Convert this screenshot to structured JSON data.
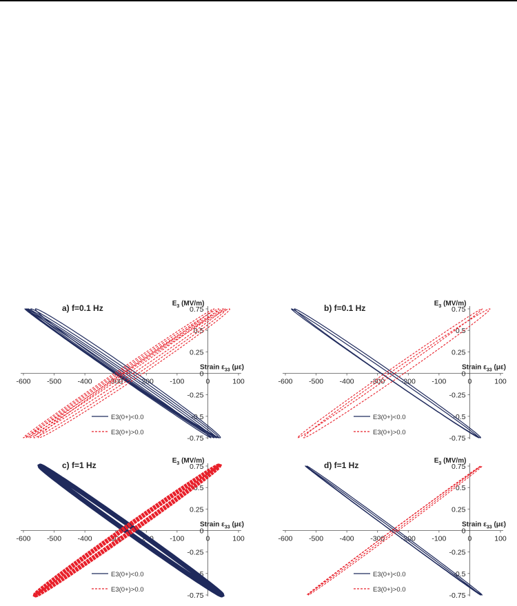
{
  "colors": {
    "negative": "#1f2a5c",
    "positive": "#e8202a",
    "axis": "#555555"
  },
  "chart_data": [
    {
      "type": "line",
      "title": "a) f=0.1 Hz",
      "xlabel": "Strain ε33 (με)",
      "ylabel": "E3 (MV/m)",
      "xlim": [
        -600,
        100
      ],
      "ylim": [
        -0.75,
        0.75
      ],
      "xticks": [
        "-600",
        "-500",
        "-400",
        "-300",
        "-200",
        "-100",
        "0",
        "100"
      ],
      "yticks": [
        "0.75",
        "0.5",
        "0.25",
        "0",
        "-0.25",
        "-0.5",
        "-0.75"
      ],
      "grid": false,
      "legend_position": "bottom-center",
      "series": [
        {
          "name": "E3(0+)<0.0",
          "style": "solid",
          "loops": [
            {
              "x_at_max": -595,
              "x_at_min": 10,
              "half_width": 12
            },
            {
              "x_at_max": -590,
              "x_at_min": 20,
              "half_width": 16
            },
            {
              "x_at_max": -585,
              "x_at_min": 28,
              "half_width": 20
            },
            {
              "x_at_max": -575,
              "x_at_min": 35,
              "half_width": 24
            },
            {
              "x_at_max": -560,
              "x_at_min": 40,
              "half_width": 28
            }
          ]
        },
        {
          "name": "E3(0+)>0.0",
          "style": "dashed",
          "loops": [
            {
              "x_at_max": 20,
              "x_at_min": -600,
              "half_width": 14
            },
            {
              "x_at_max": 35,
              "x_at_min": -590,
              "half_width": 18
            },
            {
              "x_at_max": 50,
              "x_at_min": -580,
              "half_width": 22
            },
            {
              "x_at_max": 60,
              "x_at_min": -565,
              "half_width": 26
            },
            {
              "x_at_max": 70,
              "x_at_min": -550,
              "half_width": 30
            }
          ]
        }
      ]
    },
    {
      "type": "line",
      "title": "b) f=0.1 Hz",
      "xlabel": "Strain ε33 (με)",
      "ylabel": "E3 (MV/m)",
      "xlim": [
        -600,
        100
      ],
      "ylim": [
        -0.75,
        0.75
      ],
      "xticks": [
        "-600",
        "-500",
        "-400",
        "-300",
        "-200",
        "-100",
        "0",
        "100"
      ],
      "yticks": [
        "0.75",
        "0.5",
        "0.25",
        "0",
        "-0.25",
        "-0.5",
        "-0.75"
      ],
      "grid": false,
      "legend_position": "bottom-center",
      "series": [
        {
          "name": "E3(0+)<0.0",
          "style": "solid",
          "loops": [
            {
              "x_at_max": -580,
              "x_at_min": 30,
              "half_width": 14
            },
            {
              "x_at_max": -570,
              "x_at_min": 35,
              "half_width": 20
            }
          ]
        },
        {
          "name": "E3(0+)>0.0",
          "style": "dashed",
          "loops": [
            {
              "x_at_max": 40,
              "x_at_min": -560,
              "half_width": 16
            },
            {
              "x_at_max": 65,
              "x_at_min": -540,
              "half_width": 24
            }
          ]
        }
      ]
    },
    {
      "type": "line",
      "title": "c) f=1 Hz",
      "xlabel": "Strain ε33 (με)",
      "ylabel": "E3 (MV/m)",
      "xlim": [
        -600,
        100
      ],
      "ylim": [
        -0.75,
        0.75
      ],
      "xticks": [
        "-600",
        "-500",
        "-400",
        "-300",
        "-200",
        "-100",
        "0",
        "100"
      ],
      "yticks": [
        "0.75",
        "0.5",
        "0.25",
        "0",
        "-0.25",
        "-0.5",
        "-0.75"
      ],
      "grid": false,
      "legend_position": "bottom-center",
      "series": [
        {
          "name": "E3(0+)<0.0",
          "style": "solid",
          "loops": [
            {
              "x_at_max": -545,
              "x_at_min": 45,
              "half_width": 18
            }
          ]
        },
        {
          "name": "E3(0+)>0.0",
          "style": "dashed",
          "loops": [
            {
              "x_at_max": 35,
              "x_at_min": -560,
              "half_width": 18
            }
          ]
        }
      ]
    },
    {
      "type": "line",
      "title": "d) f=1 Hz",
      "xlabel": "Strain ε33 (με)",
      "ylabel": "E3 (MV/m)",
      "xlim": [
        -600,
        100
      ],
      "ylim": [
        -0.75,
        0.75
      ],
      "xticks": [
        "-600",
        "-500",
        "-400",
        "-300",
        "-200",
        "-100",
        "0",
        "100"
      ],
      "yticks": [
        "0.75",
        "0.5",
        "0.25",
        "0",
        "-0.25",
        "-0.5",
        "-0.75"
      ],
      "grid": false,
      "legend_position": "bottom-center",
      "series": [
        {
          "name": "E3(0+)<0.0",
          "style": "solid",
          "loops": [
            {
              "x_at_max": -535,
              "x_at_min": 35,
              "half_width": 6
            },
            {
              "x_at_max": -530,
              "x_at_min": 40,
              "half_width": 10
            }
          ]
        },
        {
          "name": "E3(0+)>0.0",
          "style": "dashed",
          "loops": [
            {
              "x_at_max": 35,
              "x_at_min": -530,
              "half_width": 6
            },
            {
              "x_at_max": 40,
              "x_at_min": -525,
              "half_width": 10
            }
          ]
        }
      ]
    }
  ]
}
